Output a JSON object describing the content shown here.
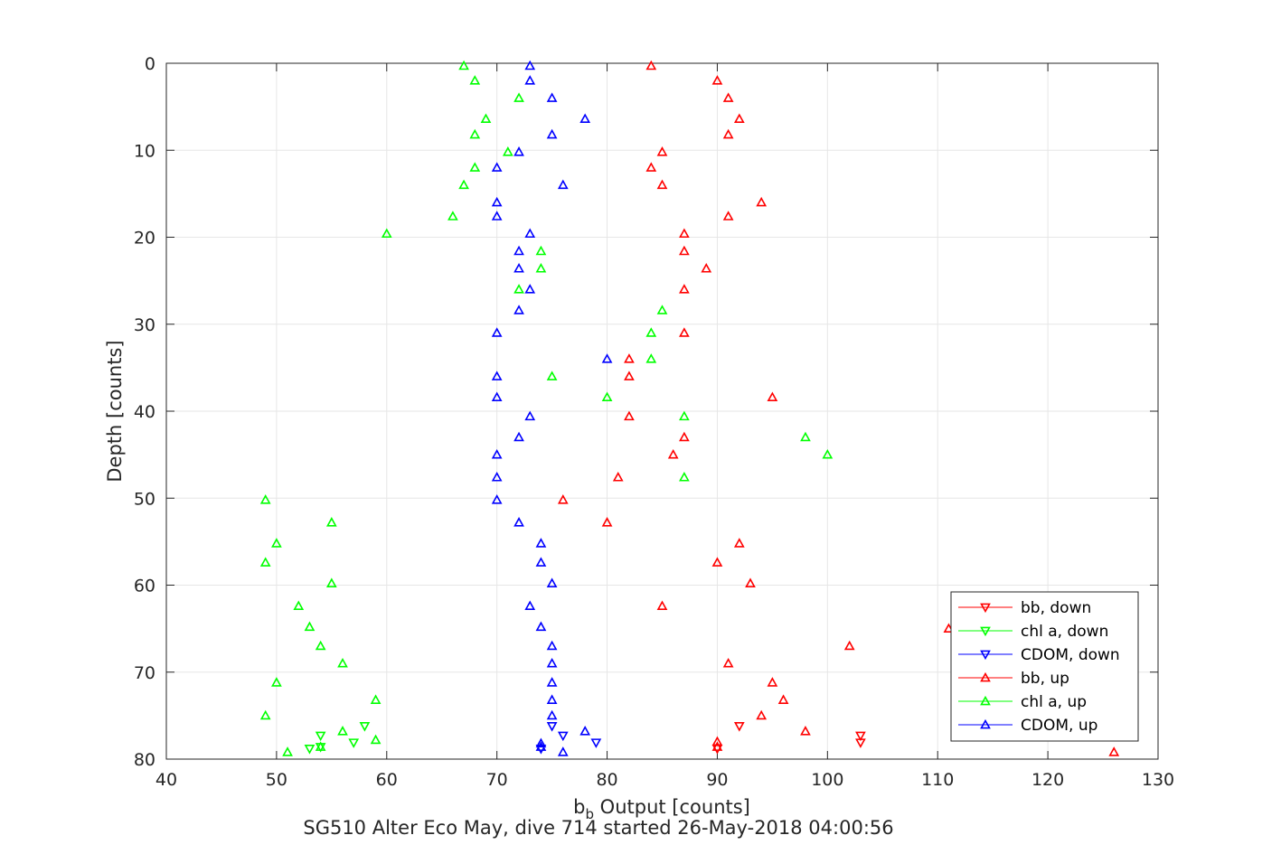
{
  "chart_data": {
    "type": "scatter",
    "title": "SG510 Alter Eco May, dive 714 started 26-May-2018 04:00:56",
    "xlabel_main": "b",
    "xlabel_sub": "b",
    "xlabel_rest": " Output [counts]",
    "ylabel": "Depth [counts]",
    "xlim": [
      40,
      130
    ],
    "ylim": [
      0,
      80
    ],
    "y_reversed": true,
    "grid": true,
    "legend_position": "bottom-right",
    "xticks": [
      40,
      50,
      60,
      70,
      80,
      90,
      100,
      110,
      120,
      130
    ],
    "yticks": [
      0,
      10,
      20,
      30,
      40,
      50,
      60,
      70,
      80
    ],
    "series": [
      {
        "name": "bb, down",
        "color": "#ff0000",
        "marker": "down",
        "points": [
          [
            92,
            76.2
          ],
          [
            103,
            77.3
          ],
          [
            103,
            78.1
          ],
          [
            90,
            78.8
          ]
        ]
      },
      {
        "name": "chl a, down",
        "color": "#00ff00",
        "marker": "down",
        "points": [
          [
            58,
            76.2
          ],
          [
            54,
            77.3
          ],
          [
            57,
            78.1
          ],
          [
            53,
            78.8
          ],
          [
            54,
            78.6
          ]
        ]
      },
      {
        "name": "CDOM, down",
        "color": "#0000ff",
        "marker": "down",
        "points": [
          [
            75,
            76.2
          ],
          [
            76,
            77.3
          ],
          [
            79,
            78.1
          ],
          [
            74,
            78.8
          ]
        ]
      },
      {
        "name": "bb, up",
        "color": "#ff0000",
        "marker": "up",
        "points": [
          [
            84,
            0.3
          ],
          [
            90,
            2.0
          ],
          [
            91,
            4.0
          ],
          [
            92,
            6.4
          ],
          [
            91,
            8.2
          ],
          [
            85,
            10.2
          ],
          [
            84,
            12.0
          ],
          [
            85,
            14.0
          ],
          [
            94,
            16.0
          ],
          [
            91,
            17.6
          ],
          [
            87,
            19.6
          ],
          [
            87,
            21.6
          ],
          [
            89,
            23.6
          ],
          [
            87,
            26.0
          ],
          [
            87,
            31.0
          ],
          [
            82,
            34.0
          ],
          [
            82,
            36.0
          ],
          [
            95,
            38.4
          ],
          [
            82,
            40.6
          ],
          [
            87,
            43.0
          ],
          [
            86,
            45.0
          ],
          [
            81,
            47.6
          ],
          [
            76,
            50.2
          ],
          [
            80,
            52.8
          ],
          [
            92,
            55.2
          ],
          [
            90,
            57.4
          ],
          [
            93,
            59.8
          ],
          [
            85,
            62.4
          ],
          [
            111,
            65.0
          ],
          [
            102,
            67.0
          ],
          [
            91,
            69.0
          ],
          [
            95,
            71.2
          ],
          [
            96,
            73.2
          ],
          [
            94,
            75.0
          ],
          [
            98,
            76.8
          ],
          [
            90,
            78.0
          ],
          [
            90,
            78.6
          ],
          [
            126,
            79.2
          ]
        ]
      },
      {
        "name": "chl a, up",
        "color": "#00ff00",
        "marker": "up",
        "points": [
          [
            67,
            0.3
          ],
          [
            68,
            2.0
          ],
          [
            72,
            4.0
          ],
          [
            69,
            6.4
          ],
          [
            68,
            8.2
          ],
          [
            71,
            10.2
          ],
          [
            68,
            12.0
          ],
          [
            67,
            14.0
          ],
          [
            66,
            17.6
          ],
          [
            60,
            19.6
          ],
          [
            74,
            21.6
          ],
          [
            74,
            23.6
          ],
          [
            72,
            26.0
          ],
          [
            85,
            28.4
          ],
          [
            84,
            31.0
          ],
          [
            84,
            34.0
          ],
          [
            75,
            36.0
          ],
          [
            80,
            38.4
          ],
          [
            87,
            40.6
          ],
          [
            98,
            43.0
          ],
          [
            100,
            45.0
          ],
          [
            87,
            47.6
          ],
          [
            49,
            50.2
          ],
          [
            55,
            52.8
          ],
          [
            50,
            55.2
          ],
          [
            49,
            57.4
          ],
          [
            55,
            59.8
          ],
          [
            52,
            62.4
          ],
          [
            53,
            64.8
          ],
          [
            54,
            67.0
          ],
          [
            56,
            69.0
          ],
          [
            50,
            71.2
          ],
          [
            59,
            73.2
          ],
          [
            49,
            75.0
          ],
          [
            56,
            76.8
          ],
          [
            59,
            77.8
          ],
          [
            54,
            78.6
          ],
          [
            51,
            79.2
          ]
        ]
      },
      {
        "name": "CDOM, up",
        "color": "#0000ff",
        "marker": "up",
        "points": [
          [
            73,
            0.3
          ],
          [
            73,
            2.0
          ],
          [
            75,
            4.0
          ],
          [
            78,
            6.4
          ],
          [
            75,
            8.2
          ],
          [
            72,
            10.2
          ],
          [
            70,
            12.0
          ],
          [
            76,
            14.0
          ],
          [
            70,
            16.0
          ],
          [
            70,
            17.6
          ],
          [
            73,
            19.6
          ],
          [
            72,
            21.6
          ],
          [
            72,
            23.6
          ],
          [
            73,
            26.0
          ],
          [
            72,
            28.4
          ],
          [
            70,
            31.0
          ],
          [
            80,
            34.0
          ],
          [
            70,
            36.0
          ],
          [
            70,
            38.4
          ],
          [
            73,
            40.6
          ],
          [
            72,
            43.0
          ],
          [
            70,
            45.0
          ],
          [
            70,
            47.6
          ],
          [
            70,
            50.2
          ],
          [
            72,
            52.8
          ],
          [
            74,
            55.2
          ],
          [
            74,
            57.4
          ],
          [
            75,
            59.8
          ],
          [
            73,
            62.4
          ],
          [
            74,
            64.8
          ],
          [
            75,
            67.0
          ],
          [
            75,
            69.0
          ],
          [
            75,
            71.2
          ],
          [
            75,
            73.2
          ],
          [
            75,
            75.0
          ],
          [
            78,
            76.8
          ],
          [
            74,
            78.2
          ],
          [
            74,
            78.6
          ],
          [
            76,
            79.2
          ]
        ]
      }
    ]
  }
}
